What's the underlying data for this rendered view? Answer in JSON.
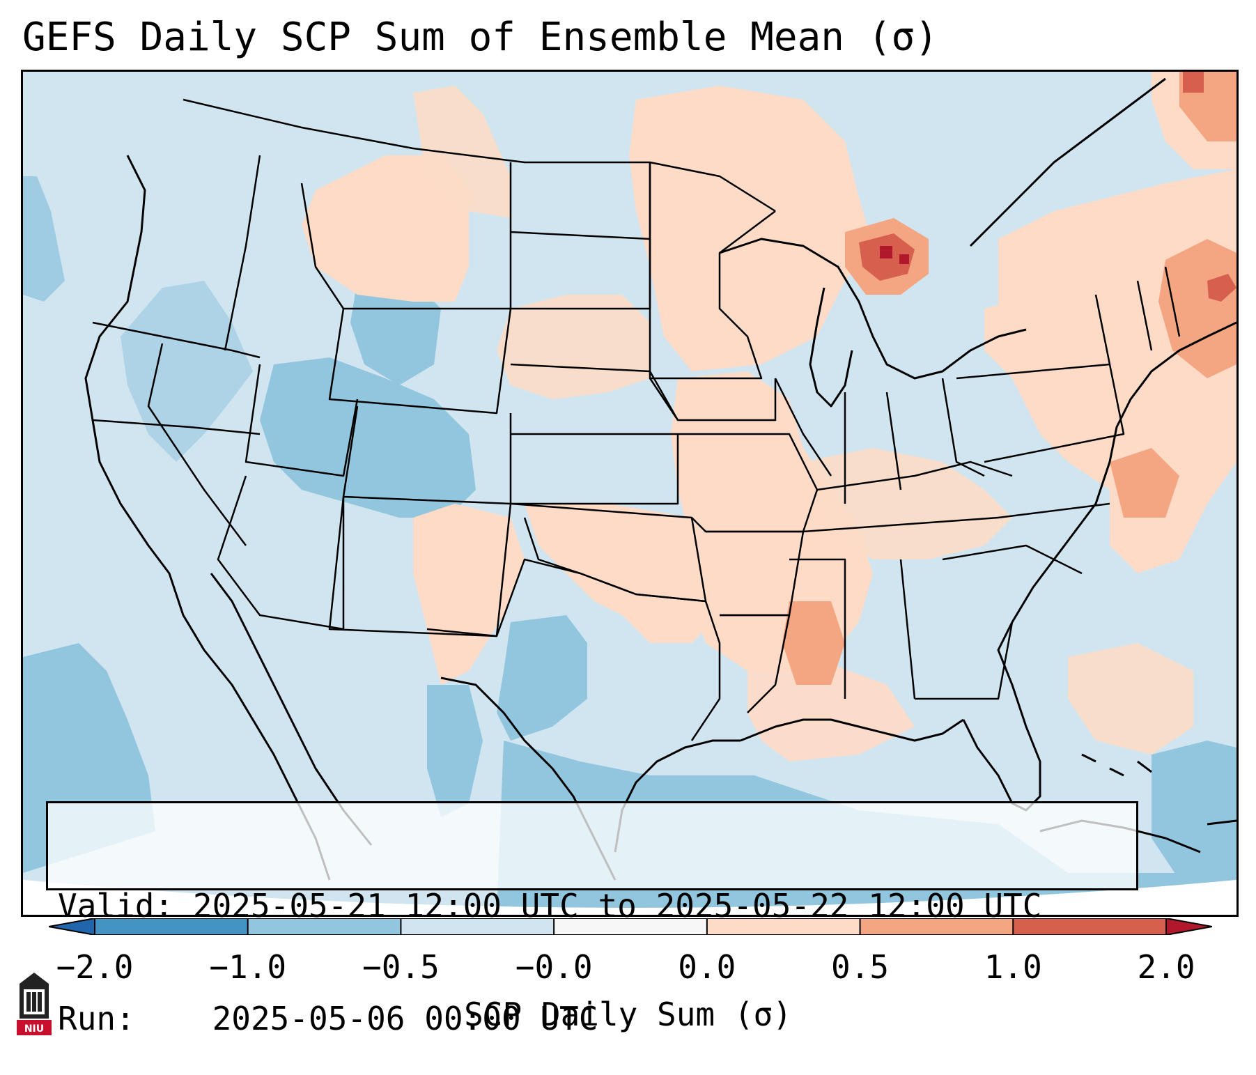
{
  "title": "GEFS Daily SCP Sum of Ensemble Mean (σ)",
  "info": {
    "valid_label": "Valid:",
    "valid_value": "2025-05-21 12:00 UTC to 2025-05-22 12:00 UTC",
    "run_label": "Run:",
    "run_value": "2025-05-06 00:00 UTC"
  },
  "colorbar": {
    "label": "SCP Daily Sum (σ)",
    "ticks": [
      "−2.0",
      "−1.0",
      "−0.5",
      "−0.0",
      "0.0",
      "0.5",
      "1.0",
      "2.0"
    ],
    "colors": [
      "#4393c3",
      "#92c5de",
      "#d1e5f0",
      "#f7f7f7",
      "#fddbc7",
      "#f4a582",
      "#d6604d"
    ],
    "under_color": "#2166ac",
    "over_color": "#b2182b"
  },
  "logo": {
    "text": "NIU",
    "color": "#c8102e"
  },
  "map": {
    "background_color": "#d1e5f0",
    "outside_color": "#ffffff"
  }
}
